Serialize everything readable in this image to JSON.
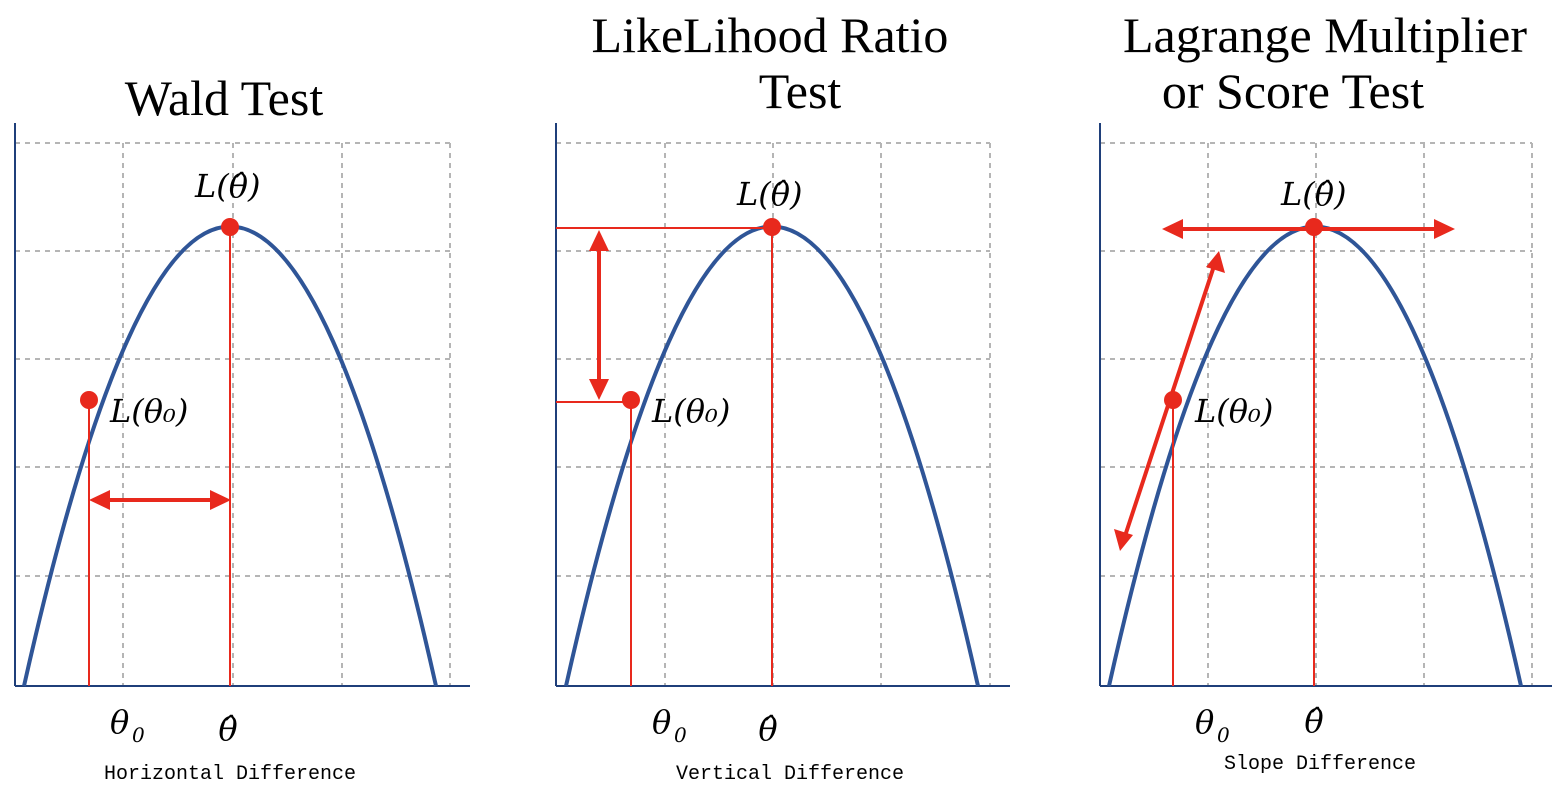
{
  "panels": [
    {
      "id": "wald",
      "title_lines": [
        "Wald Test"
      ],
      "peak_label": "L(θ̂)",
      "null_label": "L(θ₀)",
      "x_null_label": "θ",
      "x_null_sub": "0",
      "x_hat_label": "θ̂",
      "caption": "Horizontal Difference"
    },
    {
      "id": "lr",
      "title_lines": [
        "LikeLihood Ratio",
        "Test"
      ],
      "peak_label": "L(θ̂)",
      "null_label": "L(θ₀)",
      "x_null_label": "θ",
      "x_null_sub": "0",
      "x_hat_label": "θ̂",
      "caption": "Vertical Difference"
    },
    {
      "id": "lm",
      "title_lines": [
        "Lagrange Multiplier",
        "or Score Test"
      ],
      "peak_label": "L(θ̂)",
      "null_label": "L(θ₀)",
      "x_null_label": "θ",
      "x_null_sub": "0",
      "x_hat_label": "θ̂",
      "caption": "Slope Difference"
    }
  ],
  "colors": {
    "curve": "#2f5597",
    "marker": "#e8291d",
    "grid": "#b5b5b5",
    "axis": "#1f3f7a"
  }
}
